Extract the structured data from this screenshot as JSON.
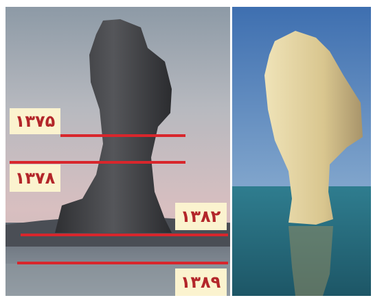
{
  "labels": [
    "۱۳۷۵",
    "۱۳۷۸",
    "۱۳۸۲",
    "۱۳۸۹"
  ]
}
